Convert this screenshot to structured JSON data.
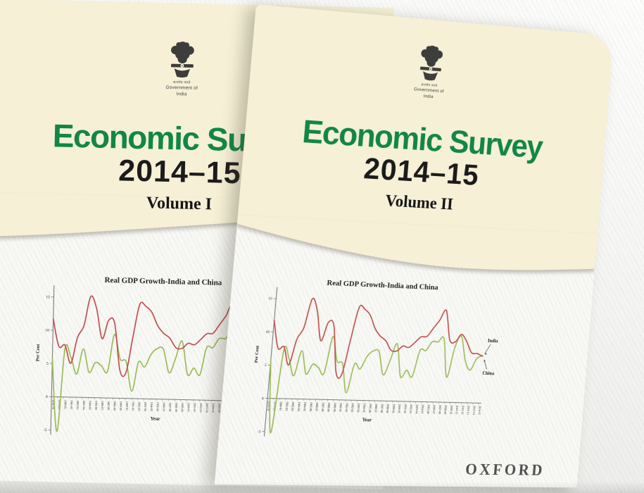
{
  "colors": {
    "cover_cream": "#f5f0d6",
    "title_green": "#128647",
    "heading_black": "#1b1b1b",
    "india_line_green": "#9bbb59",
    "china_line_red": "#c0504d",
    "oxford_gray": "#505050",
    "emblem_gray": "#3d3d3b",
    "background_gray": "#e8e8e5"
  },
  "covers": [
    {
      "volume_label": "Volume I",
      "title": "Economic Survey",
      "year": "2014–15",
      "emblem_motto": "सत्यमेव जयते",
      "emblem_caption": "Government of India",
      "show_series_labels": false
    },
    {
      "volume_label": "Volume II",
      "title": "Economic Survey",
      "year": "2014–15",
      "emblem_motto": "सत्यमेव जयते",
      "emblem_caption": "Government of India",
      "show_series_labels": true,
      "publisher": "OXFORD"
    }
  ],
  "chart_data": {
    "type": "line",
    "title": "Real GDP Growth-India and China",
    "xlabel": "Year",
    "ylabel": "Per Cent",
    "x": [
      "1978-79",
      "1979-80",
      "1980-81",
      "1981-82",
      "1982-83",
      "1983-84",
      "1984-85",
      "1985-86",
      "1986-87",
      "1987-88",
      "1988-89",
      "1989-90",
      "1990-91",
      "1991-92",
      "1992-93",
      "1993-94",
      "1994-95",
      "1995-96",
      "1996-97",
      "1997-98",
      "1998-99",
      "1999-00",
      "2000-01",
      "2001-02",
      "2002-03",
      "2003-04",
      "2004-05",
      "2005-06",
      "2006-07",
      "2007-08",
      "2008-09",
      "2009-10",
      "2010-11",
      "2011-12",
      "2012-13",
      "2013-14",
      "2014-15"
    ],
    "series": [
      {
        "name": "India",
        "color": "#9bbb59",
        "values": [
          5.7,
          -5.2,
          7.2,
          6.0,
          3.5,
          7.3,
          3.8,
          5.3,
          4.8,
          4.0,
          9.6,
          5.9,
          5.5,
          1.1,
          5.5,
          4.8,
          6.7,
          7.6,
          7.5,
          4.0,
          6.2,
          8.8,
          3.8,
          4.8,
          3.8,
          7.9,
          7.9,
          9.3,
          9.3,
          9.8,
          3.9,
          8.5,
          10.3,
          6.6,
          5.1,
          6.9,
          7.4
        ]
      },
      {
        "name": "China",
        "color": "#c0504d",
        "values": [
          11.7,
          7.6,
          7.8,
          5.1,
          9.0,
          10.8,
          15.2,
          13.4,
          8.9,
          11.7,
          11.2,
          4.2,
          3.9,
          9.3,
          14.2,
          13.9,
          13.0,
          11.0,
          9.9,
          9.2,
          7.8,
          7.7,
          8.5,
          8.3,
          9.1,
          10.0,
          10.1,
          11.4,
          12.7,
          14.2,
          9.7,
          9.4,
          10.6,
          9.5,
          7.8,
          7.7,
          7.3
        ]
      }
    ],
    "ylim": [
      -8,
      16
    ],
    "yticks": [
      15,
      10,
      5,
      0,
      -5
    ],
    "grid": false,
    "legend_position": "end-of-line-labels"
  }
}
